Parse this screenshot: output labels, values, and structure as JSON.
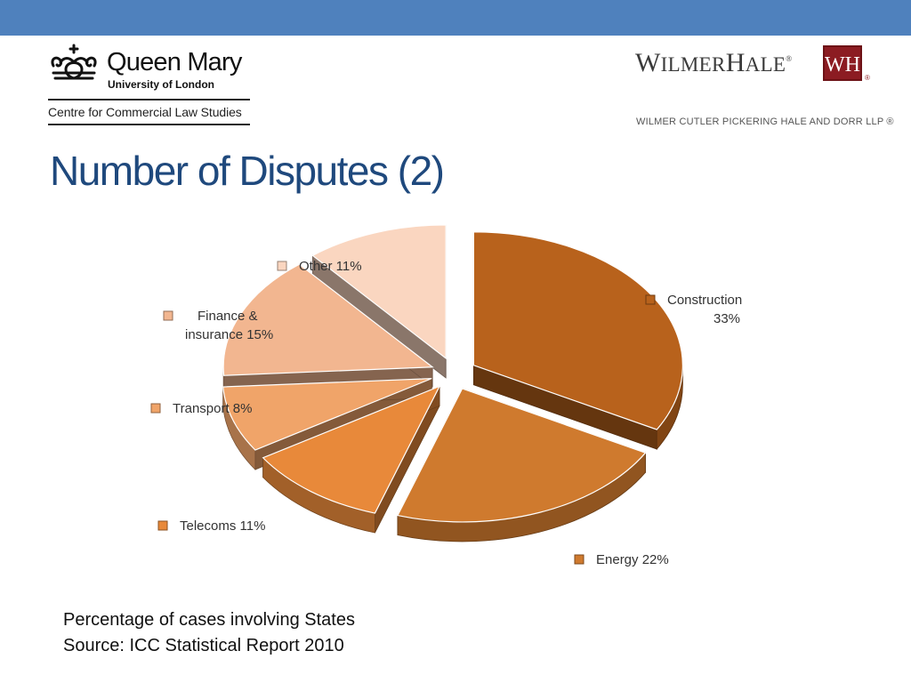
{
  "header": {
    "institution": {
      "name": "Queen Mary",
      "subtitle": "University of London",
      "centre": "Centre for Commercial Law Studies"
    },
    "firm": {
      "name": "WILMERHALE",
      "mark": "WH",
      "registered": "®",
      "subtitle": "WILMER CUTLER PICKERING HALE AND DORR LLP ®"
    }
  },
  "title": "Number of Disputes (2)",
  "chart_data": {
    "type": "pie",
    "style": "3d-exploded",
    "slices": [
      {
        "label": "Construction",
        "value": 33,
        "display": "Construction\n33%",
        "color": "#b8621c"
      },
      {
        "label": "Energy",
        "value": 22,
        "display": "Energy 22%",
        "color": "#cf7a2e"
      },
      {
        "label": "Telecoms",
        "value": 11,
        "display": "Telecoms 11%",
        "color": "#e8893a"
      },
      {
        "label": "Transport",
        "value": 8,
        "display": "Transport 8%",
        "color": "#f0a469"
      },
      {
        "label": "Finance & insurance",
        "value": 15,
        "display": "Finance &\ninsurance 15%",
        "color": "#f2b690"
      },
      {
        "label": "Other",
        "value": 11,
        "display": "Other 11%",
        "color": "#fad6c0"
      }
    ]
  },
  "caption": {
    "line1": "Percentage of cases involving States",
    "line2": "Source: ICC Statistical Report 2010"
  }
}
